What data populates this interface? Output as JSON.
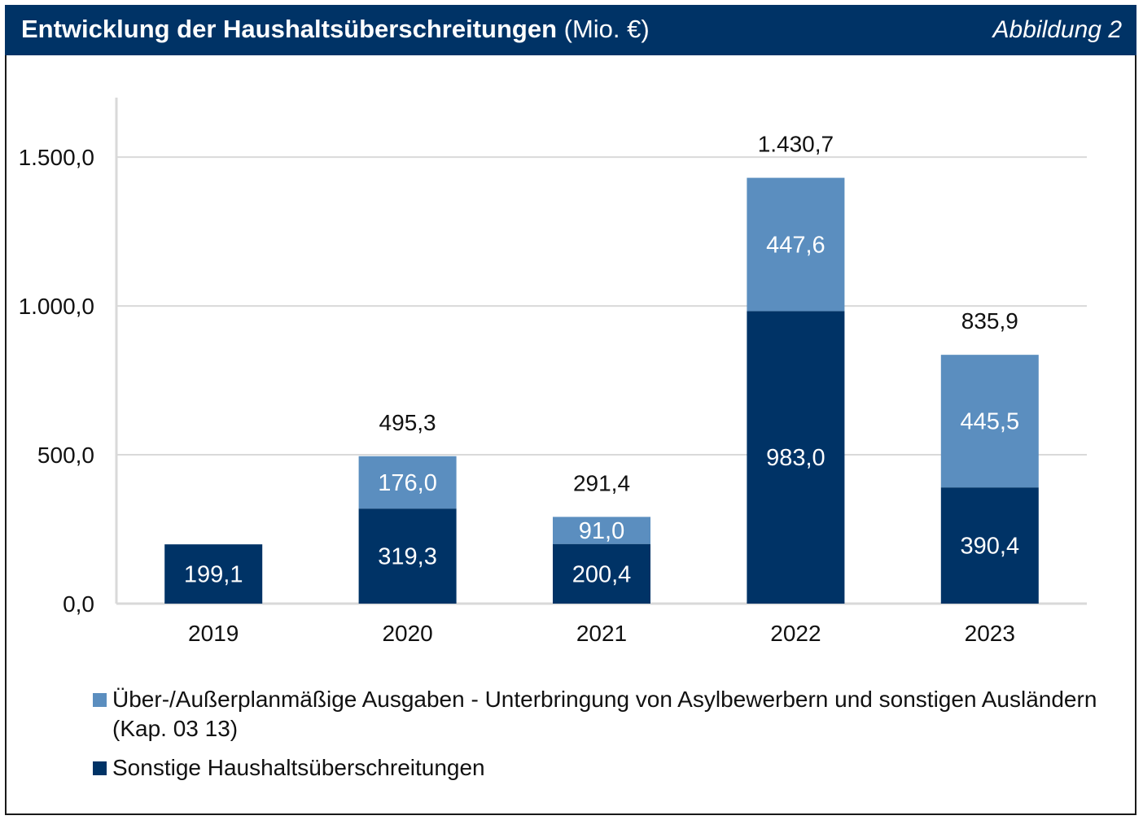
{
  "header": {
    "title": "Entwicklung der Haushaltsüberschreitungen",
    "unit": "(Mio. €)",
    "figure_label": "Abbildung 2"
  },
  "colors": {
    "header_bg": "#003366",
    "series_sonstige": "#003366",
    "series_asyl": "#5b8ebf",
    "grid": "#d9d9d9"
  },
  "chart_data": {
    "type": "bar",
    "stacked": true,
    "title": "Entwicklung der Haushaltsüberschreitungen (Mio. €)",
    "xlabel": "",
    "ylabel": "",
    "ylim": [
      0,
      1700
    ],
    "yticks": [
      0,
      500,
      1000,
      1500
    ],
    "ytick_labels": [
      "0,0",
      "500,0",
      "1.000,0",
      "1.500,0"
    ],
    "grid": true,
    "legend_position": "bottom",
    "categories": [
      "2019",
      "2020",
      "2021",
      "2022",
      "2023"
    ],
    "series": [
      {
        "name": "Sonstige Haushaltsüberschreitungen",
        "color": "#003366",
        "values": [
          199.1,
          319.3,
          200.4,
          983.0,
          390.4
        ],
        "labels": [
          "199,1",
          "319,3",
          "200,4",
          "983,0",
          "390,4"
        ]
      },
      {
        "name": "Über-/Außerplanmäßige Ausgaben - Unterbringung von Asylbewerbern und sonstigen Ausländern (Kap. 03 13)",
        "color": "#5b8ebf",
        "values": [
          0,
          176.0,
          91.0,
          447.6,
          445.5
        ],
        "labels": [
          "",
          "176,0",
          "91,0",
          "447,6",
          "445,5"
        ]
      }
    ],
    "totals": [
      199.1,
      495.3,
      291.4,
      1430.7,
      835.9
    ],
    "total_labels": [
      "",
      "495,3",
      "291,4",
      "1.430,7",
      "835,9"
    ]
  },
  "legend": {
    "items": [
      {
        "label": "Über-/Außerplanmäßige Ausgaben - Unterbringung von Asylbewerbern und sonstigen Ausländern (Kap. 03 13)"
      },
      {
        "label": "Sonstige Haushaltsüberschreitungen"
      }
    ]
  }
}
